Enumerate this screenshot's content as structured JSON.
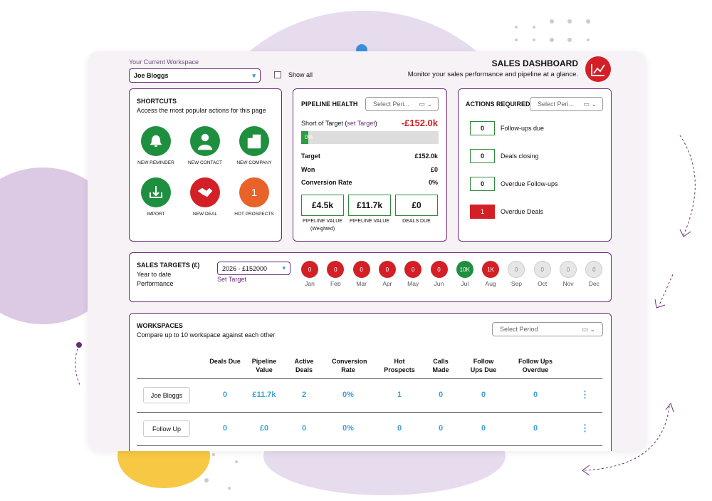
{
  "workspace": {
    "label": "Your Current Workspace",
    "selected": "Joe Bloggs",
    "show_all": "Show all"
  },
  "header": {
    "title": "SALES DASHBOARD",
    "subtitle": "Monitor your sales performance and pipeline at a glance."
  },
  "shortcuts": {
    "title": "SHORTCUTS",
    "subtitle": "Access the most popular actions for this page",
    "items": [
      {
        "label": "NEW REMINDER"
      },
      {
        "label": "NEW CONTACT"
      },
      {
        "label": "NEW COMPANY"
      },
      {
        "label": "IMPORT"
      },
      {
        "label": "NEW DEAL"
      },
      {
        "label": "HOT PROSPECTS",
        "badge": "1"
      }
    ]
  },
  "pipeline": {
    "title": "PIPELINE HEALTH",
    "period": "Select Peri...",
    "short_label": "Short of Target (",
    "set_target": "set Target",
    "short_close": ")",
    "short_value": "-£152.0k",
    "progress": "0%",
    "rows": [
      [
        "Target",
        "£152.0k"
      ],
      [
        "Won",
        "£0"
      ],
      [
        "Conversion Rate",
        "0%"
      ]
    ],
    "boxes": [
      {
        "value": "£4.5k",
        "label": "PIPELINE VALUE",
        "sub": "(Weighted)"
      },
      {
        "value": "£11.7k",
        "label": "PIPELINE VALUE"
      },
      {
        "value": "£0",
        "label": "DEALS DUE"
      }
    ]
  },
  "actions": {
    "title": "ACTIONS REQUIRED",
    "period": "Select Peri...",
    "items": [
      {
        "count": "0",
        "label": "Follow-ups due"
      },
      {
        "count": "0",
        "label": "Deals closing"
      },
      {
        "count": "0",
        "label": "Overdue Follow-ups"
      },
      {
        "count": "1",
        "label": "Overdue Deals",
        "alert": true
      }
    ]
  },
  "sales_targets": {
    "title": "SALES TARGETS (£)",
    "line1": "Year to date",
    "line2": "Performance",
    "selected": "2026 - £152000",
    "set_target": "Set Target",
    "months": [
      {
        "month": "Jan",
        "value": "0",
        "status": "miss"
      },
      {
        "month": "Feb",
        "value": "0",
        "status": "miss"
      },
      {
        "month": "Mar",
        "value": "0",
        "status": "miss"
      },
      {
        "month": "Apr",
        "value": "0",
        "status": "miss"
      },
      {
        "month": "May",
        "value": "0",
        "status": "miss"
      },
      {
        "month": "Jun",
        "value": "0",
        "status": "miss"
      },
      {
        "month": "Jul",
        "value": "10K",
        "status": "hit"
      },
      {
        "month": "Aug",
        "value": "1K",
        "status": "miss"
      },
      {
        "month": "Sep",
        "value": "0",
        "status": "future"
      },
      {
        "month": "Oct",
        "value": "0",
        "status": "future"
      },
      {
        "month": "Nov",
        "value": "0",
        "status": "future"
      },
      {
        "month": "Dec",
        "value": "0",
        "status": "future"
      }
    ]
  },
  "workspaces": {
    "title": "WORKSPACES",
    "subtitle": "Compare up to 10 workspace against each other",
    "period": "Select Period",
    "columns": [
      "Deals Due",
      "Pipeline Value",
      "Active Deals",
      "Conversion Rate",
      "Hot Prospects",
      "Calls Made",
      "Follow Ups Due",
      "Follow Ups Overdue"
    ],
    "rows": [
      {
        "name": "Joe Bloggs",
        "cells": [
          "0",
          "£11.7k",
          "2",
          "0%",
          "1",
          "0",
          "0",
          "0"
        ]
      },
      {
        "name": "Follow Up",
        "cells": [
          "0",
          "£0",
          "0",
          "0%",
          "0",
          "0",
          "0",
          "0"
        ]
      }
    ]
  }
}
